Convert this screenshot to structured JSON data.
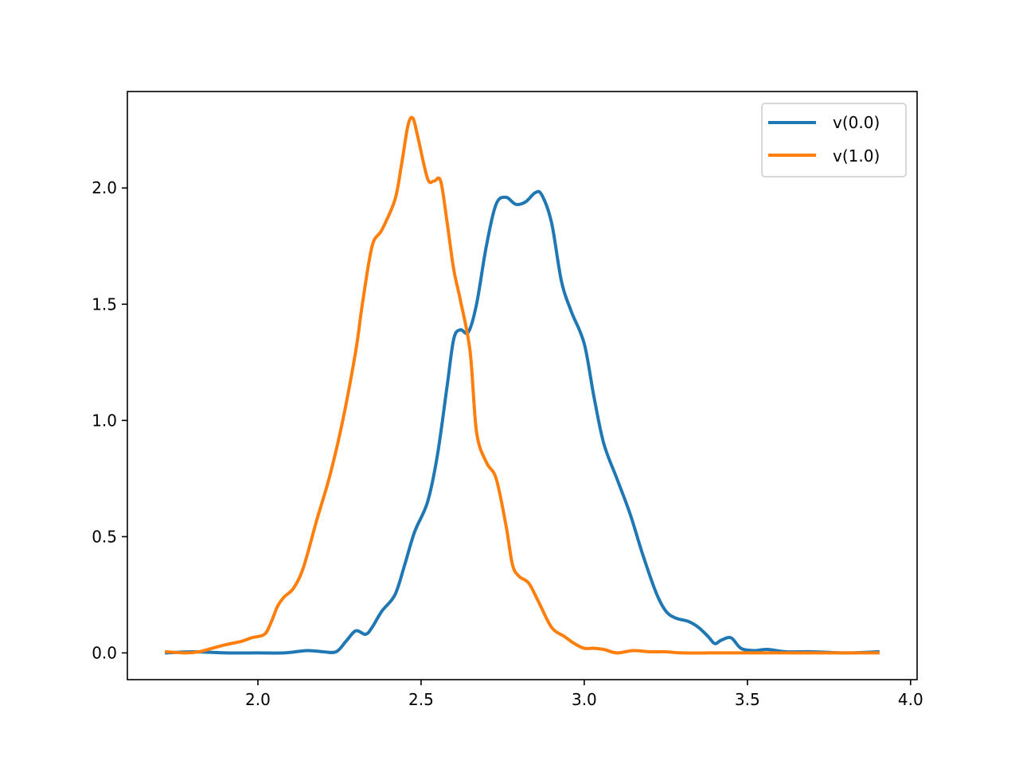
{
  "chart_data": {
    "type": "line",
    "title": "",
    "xlabel": "",
    "ylabel": "",
    "xlim": [
      1.6,
      4.02
    ],
    "ylim": [
      -0.115,
      2.415
    ],
    "grid": false,
    "legend_position": "top-right",
    "x_ticks": [
      "2.0",
      "2.5",
      "3.0",
      "3.5",
      "4.0"
    ],
    "y_ticks": [
      "0.0",
      "0.5",
      "1.0",
      "1.5",
      "2.0"
    ],
    "series": [
      {
        "name": "v(0.0)",
        "color": "#1f77b4",
        "x": [
          1.72,
          1.8,
          1.9,
          2.0,
          2.08,
          2.15,
          2.2,
          2.24,
          2.27,
          2.3,
          2.33,
          2.35,
          2.38,
          2.42,
          2.45,
          2.48,
          2.52,
          2.55,
          2.58,
          2.6,
          2.62,
          2.645,
          2.67,
          2.7,
          2.73,
          2.76,
          2.79,
          2.82,
          2.85,
          2.87,
          2.9,
          2.93,
          2.96,
          3.0,
          3.03,
          3.06,
          3.1,
          3.14,
          3.18,
          3.22,
          3.25,
          3.28,
          3.32,
          3.35,
          3.38,
          3.4,
          3.42,
          3.45,
          3.48,
          3.52,
          3.56,
          3.62,
          3.7,
          3.8,
          3.9
        ],
        "y": [
          0.0,
          0.005,
          0.0,
          0.0,
          0.0,
          0.01,
          0.005,
          0.005,
          0.05,
          0.095,
          0.08,
          0.11,
          0.18,
          0.25,
          0.38,
          0.52,
          0.65,
          0.85,
          1.15,
          1.35,
          1.39,
          1.38,
          1.5,
          1.75,
          1.93,
          1.96,
          1.93,
          1.94,
          1.98,
          1.97,
          1.85,
          1.6,
          1.47,
          1.33,
          1.1,
          0.9,
          0.75,
          0.6,
          0.42,
          0.26,
          0.18,
          0.15,
          0.135,
          0.11,
          0.07,
          0.04,
          0.055,
          0.065,
          0.02,
          0.01,
          0.015,
          0.005,
          0.005,
          0.0,
          0.005
        ]
      },
      {
        "name": "v(1.0)",
        "color": "#ff7f0e",
        "x": [
          1.72,
          1.78,
          1.82,
          1.86,
          1.9,
          1.95,
          1.98,
          2.02,
          2.04,
          2.06,
          2.08,
          2.11,
          2.14,
          2.18,
          2.22,
          2.26,
          2.3,
          2.32,
          2.35,
          2.38,
          2.42,
          2.44,
          2.46,
          2.475,
          2.49,
          2.52,
          2.54,
          2.56,
          2.58,
          2.6,
          2.62,
          2.65,
          2.67,
          2.7,
          2.73,
          2.76,
          2.78,
          2.8,
          2.83,
          2.86,
          2.9,
          2.94,
          2.97,
          3.0,
          3.03,
          3.06,
          3.1,
          3.15,
          3.2,
          3.25,
          3.3,
          3.4,
          3.5,
          3.6,
          3.9
        ],
        "y": [
          0.005,
          0.0,
          0.005,
          0.02,
          0.035,
          0.05,
          0.065,
          0.08,
          0.13,
          0.2,
          0.24,
          0.28,
          0.37,
          0.57,
          0.76,
          1.0,
          1.3,
          1.5,
          1.75,
          1.82,
          1.95,
          2.1,
          2.27,
          2.3,
          2.22,
          2.04,
          2.03,
          2.03,
          1.85,
          1.65,
          1.52,
          1.3,
          0.95,
          0.82,
          0.75,
          0.55,
          0.38,
          0.33,
          0.3,
          0.22,
          0.11,
          0.07,
          0.04,
          0.02,
          0.02,
          0.015,
          0.0,
          0.01,
          0.005,
          0.005,
          0.0,
          0.0,
          0.0,
          0.0,
          0.0
        ]
      }
    ]
  }
}
